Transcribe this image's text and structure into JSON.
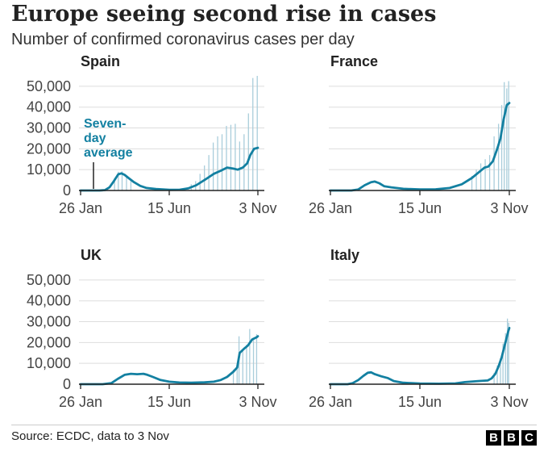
{
  "header": {
    "title": "Europe seeing second rise in cases",
    "subtitle": "Number of confirmed coronavirus cases per day"
  },
  "footer": {
    "source": "Source: ECDC, data to 3 Nov",
    "logo_letters": [
      "B",
      "B",
      "C"
    ]
  },
  "colors": {
    "line": "#1380A1",
    "bars": "#A9CDDB",
    "axis": "#222222",
    "grid": "#DDDDDD"
  },
  "chart_data": [
    {
      "type": "line",
      "title": "Spain",
      "annotation": "Seven-day average",
      "annotation_lines": [
        "Seven-",
        "day",
        "average"
      ],
      "x_ticks": [
        "26 Jan",
        "15 Jun",
        "3 Nov"
      ],
      "y_ticks": [
        "0",
        "10,000",
        "20,000",
        "30,000",
        "40,000",
        "50,000"
      ],
      "y_tick_values": [
        0,
        10000,
        20000,
        30000,
        40000,
        50000
      ],
      "ylim": [
        0,
        55000
      ],
      "x_range": [
        "2020-01-26",
        "2020-11-03"
      ],
      "series": [
        {
          "kind": "seven-day average",
          "points": [
            [
              "2020-01-26",
              0
            ],
            [
              "2020-02-25",
              0
            ],
            [
              "2020-03-05",
              200
            ],
            [
              "2020-03-12",
              1500
            ],
            [
              "2020-03-19",
              4500
            ],
            [
              "2020-03-26",
              7800
            ],
            [
              "2020-03-31",
              8200
            ],
            [
              "2020-04-05",
              7500
            ],
            [
              "2020-04-12",
              5800
            ],
            [
              "2020-04-20",
              4000
            ],
            [
              "2020-04-30",
              2200
            ],
            [
              "2020-05-10",
              1200
            ],
            [
              "2020-05-25",
              700
            ],
            [
              "2020-06-15",
              300
            ],
            [
              "2020-07-01",
              350
            ],
            [
              "2020-07-15",
              1000
            ],
            [
              "2020-07-28",
              2500
            ],
            [
              "2020-08-10",
              5000
            ],
            [
              "2020-08-25",
              8000
            ],
            [
              "2020-09-05",
              9500
            ],
            [
              "2020-09-15",
              11000
            ],
            [
              "2020-09-25",
              10500
            ],
            [
              "2020-10-02",
              10000
            ],
            [
              "2020-10-10",
              11000
            ],
            [
              "2020-10-17",
              13000
            ],
            [
              "2020-10-22",
              17000
            ],
            [
              "2020-10-28",
              20000
            ],
            [
              "2020-11-03",
              20500
            ]
          ]
        },
        {
          "kind": "daily cases",
          "points": [
            [
              "2020-03-20",
              6000
            ],
            [
              "2020-03-26",
              9000
            ],
            [
              "2020-04-01",
              9200
            ],
            [
              "2020-04-08",
              6500
            ],
            [
              "2020-04-15",
              5000
            ],
            [
              "2020-07-20",
              3000
            ],
            [
              "2020-07-27",
              4500
            ],
            [
              "2020-08-03",
              8000
            ],
            [
              "2020-08-10",
              12000
            ],
            [
              "2020-08-17",
              17000
            ],
            [
              "2020-08-24",
              23000
            ],
            [
              "2020-08-31",
              26000
            ],
            [
              "2020-09-07",
              27000
            ],
            [
              "2020-09-14",
              31000
            ],
            [
              "2020-09-21",
              31500
            ],
            [
              "2020-09-28",
              32000
            ],
            [
              "2020-10-05",
              23500
            ],
            [
              "2020-10-12",
              27000
            ],
            [
              "2020-10-19",
              37000
            ],
            [
              "2020-10-26",
              54000
            ],
            [
              "2020-11-02",
              55000
            ]
          ]
        }
      ]
    },
    {
      "type": "line",
      "title": "France",
      "x_ticks": [
        "26 Jan",
        "15 Jun",
        "3 Nov"
      ],
      "y_ticks": [
        "0",
        "10,000",
        "20,000",
        "30,000",
        "40,000",
        "50,000"
      ],
      "y_tick_values": [
        0,
        10000,
        20000,
        30000,
        40000,
        50000
      ],
      "ylim": [
        0,
        55000
      ],
      "x_range": [
        "2020-01-26",
        "2020-11-03"
      ],
      "series": [
        {
          "kind": "seven-day average",
          "points": [
            [
              "2020-01-26",
              0
            ],
            [
              "2020-02-28",
              0
            ],
            [
              "2020-03-10",
              500
            ],
            [
              "2020-03-20",
              2500
            ],
            [
              "2020-03-30",
              4000
            ],
            [
              "2020-04-05",
              4300
            ],
            [
              "2020-04-12",
              3500
            ],
            [
              "2020-04-20",
              2000
            ],
            [
              "2020-05-01",
              1500
            ],
            [
              "2020-05-20",
              800
            ],
            [
              "2020-06-15",
              500
            ],
            [
              "2020-07-10",
              600
            ],
            [
              "2020-08-01",
              1200
            ],
            [
              "2020-08-20",
              3000
            ],
            [
              "2020-09-05",
              6000
            ],
            [
              "2020-09-15",
              8500
            ],
            [
              "2020-09-25",
              11000
            ],
            [
              "2020-10-01",
              11500
            ],
            [
              "2020-10-08",
              14000
            ],
            [
              "2020-10-15",
              20000
            ],
            [
              "2020-10-20",
              25000
            ],
            [
              "2020-10-25",
              34000
            ],
            [
              "2020-10-30",
              41000
            ],
            [
              "2020-11-03",
              42000
            ]
          ]
        },
        {
          "kind": "daily cases",
          "points": [
            [
              "2020-09-05",
              7000
            ],
            [
              "2020-09-12",
              10000
            ],
            [
              "2020-09-19",
              13000
            ],
            [
              "2020-09-26",
              15000
            ],
            [
              "2020-10-03",
              17000
            ],
            [
              "2020-10-10",
              26000
            ],
            [
              "2020-10-17",
              32000
            ],
            [
              "2020-10-22",
              41000
            ],
            [
              "2020-10-26",
              52000
            ],
            [
              "2020-10-30",
              49000
            ],
            [
              "2020-11-02",
              52500
            ]
          ]
        }
      ]
    },
    {
      "type": "line",
      "title": "UK",
      "x_ticks": [
        "26 Jan",
        "15 Jun",
        "3 Nov"
      ],
      "y_ticks": [
        "0",
        "10,000",
        "20,000",
        "30,000",
        "40,000",
        "50,000"
      ],
      "y_tick_values": [
        0,
        10000,
        20000,
        30000,
        40000,
        50000
      ],
      "ylim": [
        0,
        55000
      ],
      "x_range": [
        "2020-01-26",
        "2020-11-03"
      ],
      "series": [
        {
          "kind": "seven-day average",
          "points": [
            [
              "2020-01-26",
              0
            ],
            [
              "2020-03-01",
              0
            ],
            [
              "2020-03-15",
              500
            ],
            [
              "2020-03-25",
              2500
            ],
            [
              "2020-04-05",
              4500
            ],
            [
              "2020-04-15",
              5000
            ],
            [
              "2020-04-25",
              4800
            ],
            [
              "2020-05-05",
              5000
            ],
            [
              "2020-05-10",
              4600
            ],
            [
              "2020-05-20",
              3500
            ],
            [
              "2020-06-01",
              2000
            ],
            [
              "2020-06-15",
              1200
            ],
            [
              "2020-07-01",
              800
            ],
            [
              "2020-07-20",
              700
            ],
            [
              "2020-08-10",
              900
            ],
            [
              "2020-08-25",
              1200
            ],
            [
              "2020-09-05",
              2000
            ],
            [
              "2020-09-15",
              3500
            ],
            [
              "2020-09-25",
              6000
            ],
            [
              "2020-10-01",
              8000
            ],
            [
              "2020-10-05",
              15000
            ],
            [
              "2020-10-12",
              17000
            ],
            [
              "2020-10-18",
              18500
            ],
            [
              "2020-10-25",
              21500
            ],
            [
              "2020-11-01",
              22500
            ],
            [
              "2020-11-03",
              23000
            ]
          ]
        },
        {
          "kind": "daily cases",
          "points": [
            [
              "2020-09-25",
              7000
            ],
            [
              "2020-10-01",
              9000
            ],
            [
              "2020-10-04",
              23000
            ],
            [
              "2020-10-10",
              16000
            ],
            [
              "2020-10-16",
              19000
            ],
            [
              "2020-10-21",
              26500
            ],
            [
              "2020-10-27",
              22000
            ],
            [
              "2020-11-01",
              24000
            ]
          ]
        }
      ]
    },
    {
      "type": "line",
      "title": "Italy",
      "x_ticks": [
        "26 Jan",
        "15 Jun",
        "3 Nov"
      ],
      "y_ticks": [
        "0",
        "10,000",
        "20,000",
        "30,000",
        "40,000",
        "50,000"
      ],
      "y_tick_values": [
        0,
        10000,
        20000,
        30000,
        40000,
        50000
      ],
      "ylim": [
        0,
        55000
      ],
      "x_range": [
        "2020-01-26",
        "2020-11-03"
      ],
      "series": [
        {
          "kind": "seven-day average",
          "points": [
            [
              "2020-01-26",
              0
            ],
            [
              "2020-02-22",
              0
            ],
            [
              "2020-03-01",
              500
            ],
            [
              "2020-03-10",
              2000
            ],
            [
              "2020-03-18",
              4000
            ],
            [
              "2020-03-25",
              5500
            ],
            [
              "2020-03-30",
              5700
            ],
            [
              "2020-04-05",
              4800
            ],
            [
              "2020-04-15",
              3800
            ],
            [
              "2020-04-25",
              3000
            ],
            [
              "2020-05-05",
              1500
            ],
            [
              "2020-05-20",
              700
            ],
            [
              "2020-06-15",
              300
            ],
            [
              "2020-07-15",
              250
            ],
            [
              "2020-08-10",
              400
            ],
            [
              "2020-08-25",
              1000
            ],
            [
              "2020-09-15",
              1500
            ],
            [
              "2020-09-30",
              1800
            ],
            [
              "2020-10-06",
              2800
            ],
            [
              "2020-10-12",
              5000
            ],
            [
              "2020-10-17",
              8500
            ],
            [
              "2020-10-22",
              13000
            ],
            [
              "2020-10-27",
              19000
            ],
            [
              "2020-11-01",
              25000
            ],
            [
              "2020-11-03",
              27000
            ]
          ]
        },
        {
          "kind": "daily cases",
          "points": [
            [
              "2020-10-10",
              5500
            ],
            [
              "2020-10-15",
              9000
            ],
            [
              "2020-10-20",
              12500
            ],
            [
              "2020-10-24",
              19500
            ],
            [
              "2020-10-28",
              24500
            ],
            [
              "2020-10-31",
              31500
            ],
            [
              "2020-11-02",
              29500
            ]
          ]
        }
      ]
    }
  ]
}
